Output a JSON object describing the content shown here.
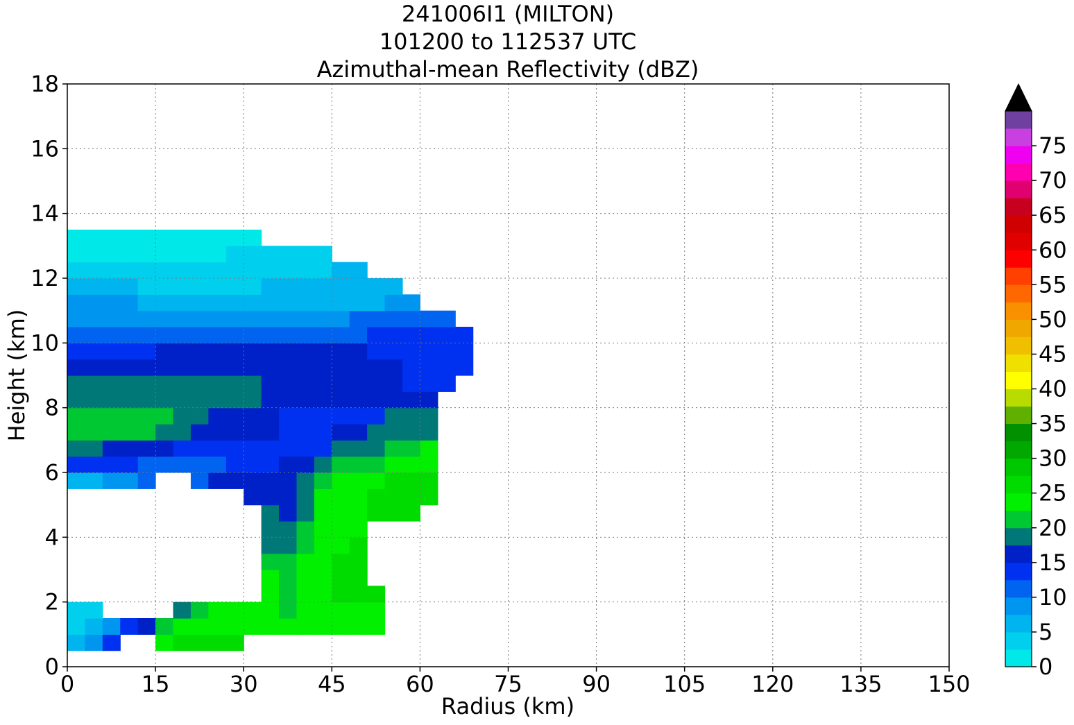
{
  "chart_data": {
    "type": "contourf",
    "title": [
      "241006I1 (MILTON)",
      "101200 to 112537 UTC",
      "Azimuthal-mean Reflectivity (dBZ)"
    ],
    "xlabel": "Radius (km)",
    "ylabel": "Height (km)",
    "xlim": [
      0,
      150
    ],
    "xticks": [
      0,
      15,
      30,
      45,
      60,
      75,
      90,
      105,
      120,
      135,
      150
    ],
    "ylim": [
      0,
      18
    ],
    "yticks": [
      0,
      2,
      4,
      6,
      8,
      10,
      12,
      14,
      16,
      18
    ],
    "grid": true,
    "x": [
      1.5,
      4.5,
      7.5,
      10.5,
      13.5,
      16.5,
      19.5,
      22.5,
      25.5,
      28.5,
      31.5,
      34.5,
      37.5,
      40.5,
      43.5,
      46.5,
      49.5,
      52.5,
      55.5,
      58.5,
      61.5,
      64.5,
      67.5
    ],
    "y": [
      0.75,
      1.25,
      1.75,
      2.25,
      2.75,
      3.25,
      3.75,
      4.25,
      4.75,
      5.25,
      5.75,
      6.25,
      6.75,
      7.25,
      7.75,
      8.25,
      8.75,
      9.25,
      9.75,
      10.25,
      10.75,
      11.25,
      11.75,
      12.25,
      12.75,
      13.25
    ],
    "values": [
      [
        6,
        9,
        14,
        null,
        null,
        24,
        26,
        26,
        26,
        26,
        null,
        null,
        null,
        null,
        null,
        null,
        null,
        null,
        null,
        null,
        null,
        null,
        null
      ],
      [
        4,
        6,
        9,
        14,
        16,
        21,
        24,
        24,
        24,
        24,
        24,
        24,
        24,
        24,
        24,
        24,
        24,
        24,
        null,
        null,
        null,
        null,
        null
      ],
      [
        4,
        4,
        null,
        null,
        null,
        null,
        19,
        21,
        24,
        24,
        24,
        24,
        21,
        24,
        24,
        24,
        24,
        24,
        null,
        null,
        null,
        null,
        null
      ],
      [
        null,
        null,
        null,
        null,
        null,
        null,
        null,
        null,
        null,
        null,
        null,
        24,
        21,
        24,
        24,
        26,
        26,
        26,
        null,
        null,
        null,
        null,
        null
      ],
      [
        null,
        null,
        null,
        null,
        null,
        null,
        null,
        null,
        null,
        null,
        null,
        24,
        21,
        24,
        24,
        26,
        26,
        null,
        null,
        null,
        null,
        null,
        null
      ],
      [
        null,
        null,
        null,
        null,
        null,
        null,
        null,
        null,
        null,
        null,
        null,
        21,
        21,
        24,
        24,
        26,
        26,
        null,
        null,
        null,
        null,
        null,
        null
      ],
      [
        null,
        null,
        null,
        null,
        null,
        null,
        null,
        null,
        null,
        null,
        null,
        19,
        19,
        21,
        24,
        24,
        26,
        null,
        null,
        null,
        null,
        null,
        null
      ],
      [
        null,
        null,
        null,
        null,
        null,
        null,
        null,
        null,
        null,
        null,
        null,
        19,
        19,
        21,
        24,
        24,
        24,
        null,
        null,
        null,
        null,
        null,
        null
      ],
      [
        null,
        null,
        null,
        null,
        null,
        null,
        null,
        null,
        null,
        null,
        null,
        19,
        16,
        19,
        24,
        24,
        24,
        26,
        26,
        26,
        null,
        null,
        null
      ],
      [
        null,
        null,
        null,
        null,
        null,
        null,
        null,
        null,
        null,
        null,
        16,
        16,
        16,
        19,
        24,
        24,
        24,
        26,
        26,
        26,
        26,
        null,
        null
      ],
      [
        6,
        6,
        9,
        9,
        11,
        null,
        null,
        11,
        16,
        16,
        16,
        16,
        16,
        19,
        21,
        24,
        24,
        24,
        26,
        26,
        26,
        null,
        null
      ],
      [
        14,
        14,
        14,
        14,
        11,
        11,
        11,
        11,
        11,
        14,
        14,
        14,
        16,
        16,
        19,
        21,
        21,
        21,
        24,
        24,
        24,
        null,
        null
      ],
      [
        19,
        19,
        16,
        16,
        16,
        16,
        14,
        14,
        14,
        14,
        14,
        14,
        14,
        14,
        14,
        19,
        19,
        19,
        21,
        21,
        24,
        null,
        null
      ],
      [
        21,
        21,
        21,
        21,
        21,
        19,
        19,
        16,
        16,
        16,
        16,
        16,
        14,
        14,
        14,
        16,
        16,
        19,
        19,
        19,
        19,
        null,
        null
      ],
      [
        21,
        21,
        21,
        21,
        21,
        21,
        19,
        19,
        16,
        16,
        16,
        16,
        14,
        14,
        14,
        14,
        14,
        14,
        19,
        19,
        19,
        null,
        null
      ],
      [
        19,
        19,
        19,
        19,
        19,
        19,
        19,
        19,
        19,
        19,
        19,
        16,
        16,
        16,
        16,
        16,
        16,
        16,
        16,
        16,
        16,
        null,
        null
      ],
      [
        19,
        19,
        19,
        19,
        19,
        19,
        19,
        19,
        19,
        19,
        19,
        16,
        16,
        16,
        16,
        16,
        16,
        16,
        16,
        14,
        14,
        14,
        null
      ],
      [
        16,
        16,
        16,
        16,
        16,
        16,
        16,
        16,
        16,
        16,
        16,
        16,
        16,
        16,
        16,
        16,
        16,
        16,
        16,
        14,
        14,
        14,
        14
      ],
      [
        14,
        14,
        14,
        14,
        14,
        16,
        16,
        16,
        16,
        16,
        16,
        16,
        16,
        16,
        16,
        16,
        16,
        14,
        14,
        14,
        14,
        14,
        14
      ],
      [
        11,
        11,
        11,
        11,
        11,
        11,
        11,
        11,
        11,
        11,
        11,
        11,
        11,
        11,
        11,
        11,
        11,
        14,
        14,
        14,
        14,
        14,
        14
      ],
      [
        9,
        9,
        9,
        9,
        9,
        9,
        9,
        9,
        9,
        9,
        9,
        9,
        9,
        9,
        9,
        9,
        11,
        11,
        11,
        11,
        11,
        11,
        null
      ],
      [
        9,
        9,
        9,
        9,
        6,
        6,
        6,
        6,
        6,
        6,
        6,
        6,
        6,
        6,
        6,
        6,
        6,
        6,
        9,
        9,
        null,
        null,
        null
      ],
      [
        6,
        6,
        6,
        6,
        4,
        4,
        4,
        4,
        4,
        4,
        4,
        6,
        6,
        6,
        6,
        6,
        6,
        6,
        6,
        null,
        null,
        null,
        null
      ],
      [
        4,
        4,
        4,
        4,
        4,
        4,
        4,
        4,
        4,
        4,
        4,
        4,
        4,
        4,
        4,
        6,
        6,
        null,
        null,
        null,
        null,
        null,
        null
      ],
      [
        1,
        1,
        1,
        1,
        1,
        1,
        1,
        1,
        1,
        4,
        4,
        4,
        4,
        4,
        4,
        null,
        null,
        null,
        null,
        null,
        null,
        null,
        null
      ],
      [
        1,
        1,
        1,
        1,
        1,
        1,
        1,
        1,
        1,
        1,
        1,
        null,
        null,
        null,
        null,
        null,
        null,
        null,
        null,
        null,
        null,
        null,
        null
      ]
    ],
    "colorbar": {
      "levels": [
        0,
        2.5,
        5,
        7.5,
        10,
        12.5,
        15,
        17.5,
        20,
        22.5,
        25,
        27.5,
        30,
        32.5,
        35,
        37.5,
        40,
        42.5,
        45,
        47.5,
        50,
        52.5,
        55,
        57.5,
        60,
        62.5,
        65,
        67.5,
        70,
        72.5,
        75,
        77.5,
        80
      ],
      "colors": [
        "#00e8e8",
        "#00d0ee",
        "#00b4f0",
        "#0096f0",
        "#0064f0",
        "#0030f0",
        "#0020c8",
        "#007878",
        "#00c832",
        "#00f000",
        "#00dc00",
        "#00c800",
        "#00a800",
        "#009000",
        "#60b000",
        "#b8dc00",
        "#ffff00",
        "#f0e000",
        "#f0c000",
        "#f0a800",
        "#f89000",
        "#ff6800",
        "#ff4000",
        "#ff0000",
        "#e00000",
        "#d00000",
        "#c80020",
        "#e00070",
        "#ff00b0",
        "#f000f0",
        "#c840e0",
        "#7040a0"
      ],
      "extend_color": "#000000",
      "ticks": [
        0,
        5,
        10,
        15,
        20,
        25,
        30,
        35,
        40,
        45,
        50,
        55,
        60,
        65,
        70,
        75
      ]
    }
  }
}
